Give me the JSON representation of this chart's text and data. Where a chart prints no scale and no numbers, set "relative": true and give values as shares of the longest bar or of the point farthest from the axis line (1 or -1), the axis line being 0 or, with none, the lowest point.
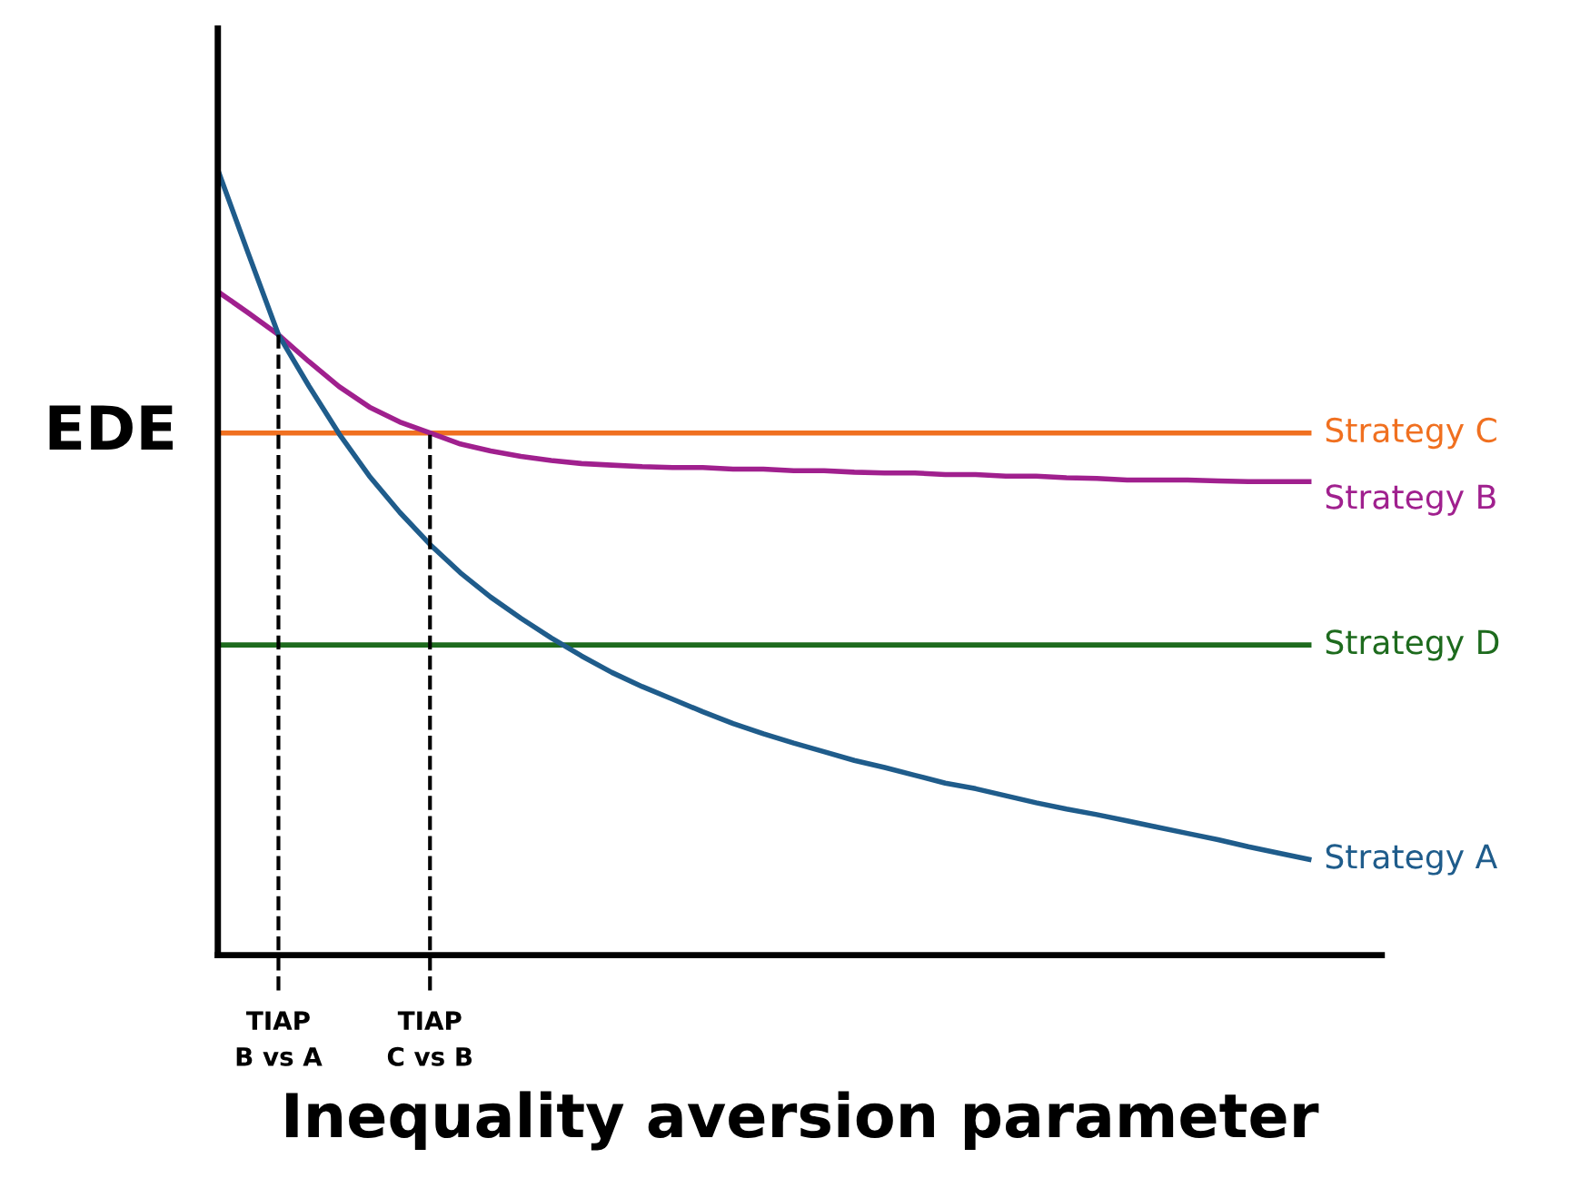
{
  "chart_data": {
    "type": "line",
    "relative": true,
    "xlabel": "Inequality aversion parameter",
    "ylabel": "EDE",
    "tick_labels": "x",
    "grid": false,
    "legend": false,
    "marker": "none",
    "line_style": "solid",
    "categories": [
      null,
      null,
      "TIAP\nB vs A",
      null,
      null,
      null,
      null,
      "TIAP\nC vs B",
      null,
      null,
      null,
      null,
      null,
      null,
      null,
      null,
      null,
      null,
      null,
      null,
      null,
      null,
      null,
      null,
      null,
      null,
      null,
      null,
      null,
      null,
      null,
      null,
      null,
      null,
      null,
      null,
      null
    ],
    "series": [
      {
        "name": "Strategy C",
        "color": "#f07020",
        "values": [
          0.665,
          0.665,
          0.665,
          0.665,
          0.665,
          0.665,
          0.665,
          0.665,
          0.665,
          0.665,
          0.665,
          0.665,
          0.665,
          0.665,
          0.665,
          0.665,
          0.665,
          0.665,
          0.665,
          0.665,
          0.665,
          0.665,
          0.665,
          0.665,
          0.665,
          0.665,
          0.665,
          0.665,
          0.665,
          0.665,
          0.665,
          0.665,
          0.665,
          0.665,
          0.665,
          0.665,
          0.665
        ]
      },
      {
        "name": "Strategy B",
        "color": "#a0208e",
        "values": [
          0.845,
          0.818,
          0.79,
          0.756,
          0.724,
          0.698,
          0.679,
          0.665,
          0.651,
          0.642,
          0.635,
          0.63,
          0.626,
          0.624,
          0.622,
          0.621,
          0.621,
          0.619,
          0.619,
          0.617,
          0.617,
          0.615,
          0.614,
          0.614,
          0.612,
          0.612,
          0.61,
          0.61,
          0.608,
          0.607,
          0.605,
          0.605,
          0.605,
          0.604,
          0.603,
          0.603,
          0.603
        ]
      },
      {
        "name": "Strategy D",
        "color": "#1e6b1e",
        "values": [
          0.395,
          0.395,
          0.395,
          0.395,
          0.395,
          0.395,
          0.395,
          0.395,
          0.395,
          0.395,
          0.395,
          0.395,
          0.395,
          0.395,
          0.395,
          0.395,
          0.395,
          0.395,
          0.395,
          0.395,
          0.395,
          0.395,
          0.395,
          0.395,
          0.395,
          0.395,
          0.395,
          0.395,
          0.395,
          0.395,
          0.395,
          0.395,
          0.395,
          0.395,
          0.395,
          0.395,
          0.395
        ]
      },
      {
        "name": "Strategy A",
        "color": "#1f5c8b",
        "values": [
          1,
          0.894,
          0.79,
          0.725,
          0.664,
          0.61,
          0.564,
          0.523,
          0.487,
          0.456,
          0.429,
          0.404,
          0.381,
          0.36,
          0.342,
          0.326,
          0.31,
          0.295,
          0.282,
          0.27,
          0.259,
          0.248,
          0.239,
          0.229,
          0.219,
          0.212,
          0.203,
          0.194,
          0.186,
          0.179,
          0.171,
          0.163,
          0.155,
          0.147,
          0.138,
          0.13,
          0.122
        ]
      }
    ],
    "ref_lines": [
      {
        "axis": "x",
        "value": "TIAP\nB vs A",
        "color": "#000000",
        "line_style": "dashed"
      },
      {
        "axis": "x",
        "value": "TIAP\nC vs B",
        "color": "#000000",
        "line_style": "dashed"
      }
    ]
  }
}
